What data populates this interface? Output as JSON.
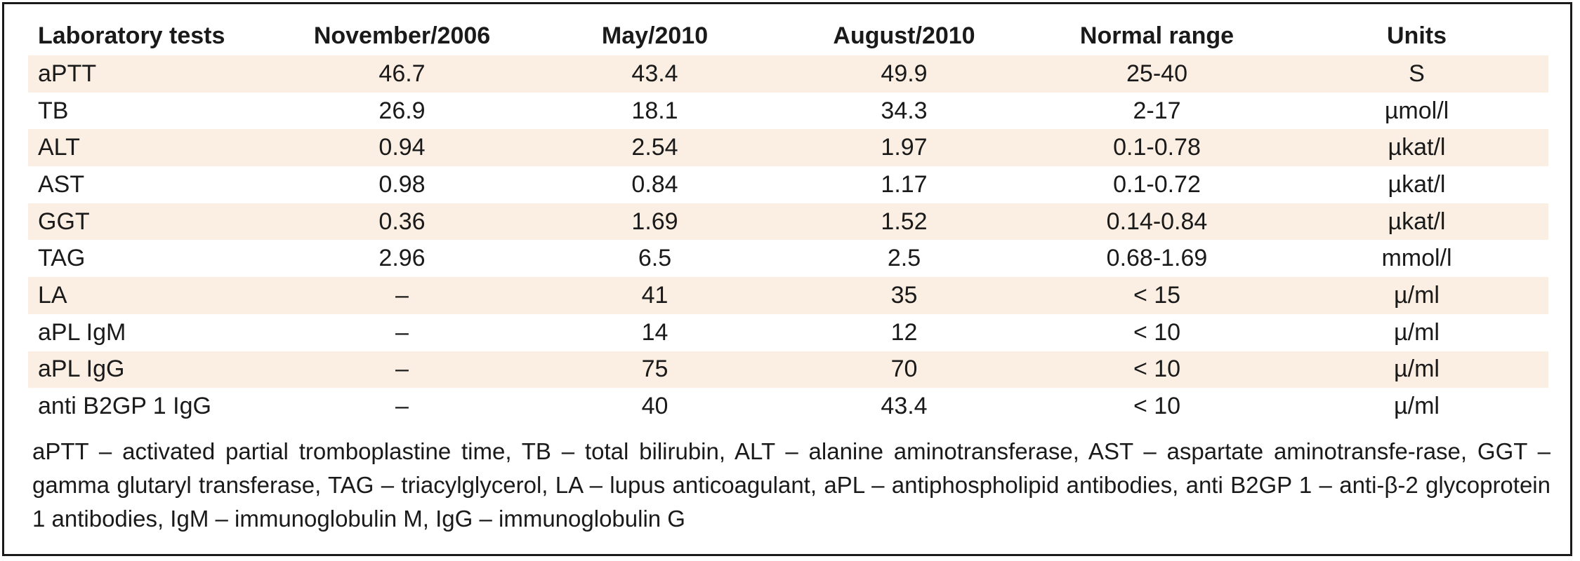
{
  "table": {
    "headers": [
      "Laboratory tests",
      "November/2006",
      "May/2010",
      "August/2010",
      "Normal range",
      "Units"
    ],
    "rows": [
      [
        "aPTT",
        "46.7",
        "43.4",
        "49.9",
        "25-40",
        "S"
      ],
      [
        "TB",
        "26.9",
        "18.1",
        "34.3",
        "2-17",
        "µmol/l"
      ],
      [
        "ALT",
        "0.94",
        "2.54",
        "1.97",
        "0.1-0.78",
        "µkat/l"
      ],
      [
        "AST",
        "0.98",
        "0.84",
        "1.17",
        "0.1-0.72",
        "µkat/l"
      ],
      [
        "GGT",
        "0.36",
        "1.69",
        "1.52",
        "0.14-0.84",
        "µkat/l"
      ],
      [
        "TAG",
        "2.96",
        "6.5",
        "2.5",
        "0.68-1.69",
        "mmol/l"
      ],
      [
        "LA",
        "–",
        "41",
        "35",
        "< 15",
        "µ/ml"
      ],
      [
        "aPL IgM",
        "–",
        "14",
        "12",
        "< 10",
        "µ/ml"
      ],
      [
        "aPL IgG",
        "–",
        "75",
        "70",
        "< 10",
        "µ/ml"
      ],
      [
        "anti B2GP 1 IgG",
        "–",
        "40",
        "43.4",
        "< 10",
        "µ/ml"
      ]
    ]
  },
  "footnote": "aPTT – activated partial tromboplastine time, TB – total bilirubin, ALT – alanine aminotransferase, AST – aspartate aminotransfe-rase, GGT – gamma glutaryl transferase, TAG – triacylglycerol, LA – lupus anticoagulant, aPL – antiphospholipid antibodies, anti B2GP 1 – anti-β-2 glycoprotein 1 antibodies, IgM – immunoglobulin M, IgG – immunoglobulin G",
  "colors": {
    "row_shade": "#fbeee2",
    "border": "#1a1a1a"
  }
}
